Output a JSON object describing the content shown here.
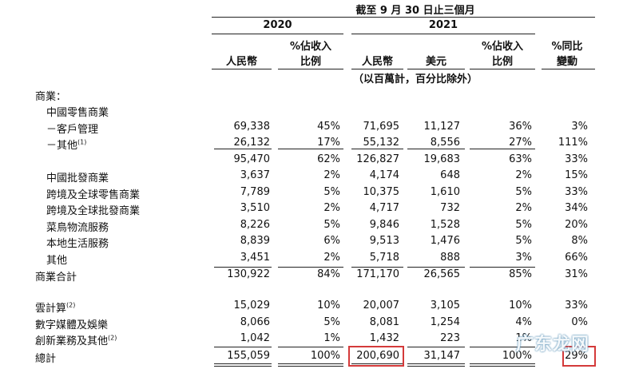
{
  "header": {
    "period": "截至 9 月 30 日止三個月",
    "year_2020": "2020",
    "year_2021": "2021",
    "col_rmb_2020": "人民幣",
    "col_pct_2020_l1": "%佔收入",
    "col_pct_2020_l2": "比例",
    "col_rmb_2021": "人民幣",
    "col_usd_2021": "美元",
    "col_pct_2021_l1": "%佔收入",
    "col_pct_2021_l2": "比例",
    "col_yoy_l1": "%同比",
    "col_yoy_l2": "變動",
    "unit_note": "（以百萬計，百分比除外）"
  },
  "section_label": "商業：",
  "sub_label": "中國零售商業",
  "rows": [
    {
      "label": "－客戶管理",
      "sup": "",
      "rmb2020": "69,338",
      "pct2020": "45%",
      "rmb2021": "71,695",
      "usd2021": "11,127",
      "pct2021": "36%",
      "yoy": "3%"
    },
    {
      "label": "－其他",
      "sup": "(1)",
      "rmb2020": "26,132",
      "pct2020": "17%",
      "rmb2021": "55,132",
      "usd2021": "8,556",
      "pct2021": "27%",
      "yoy": "111%"
    },
    {
      "label": "",
      "sup": "",
      "rmb2020": "95,470",
      "pct2020": "62%",
      "rmb2021": "126,827",
      "usd2021": "19,683",
      "pct2021": "63%",
      "yoy": "33%"
    },
    {
      "label": "中國批發商業",
      "sup": "",
      "rmb2020": "3,637",
      "pct2020": "2%",
      "rmb2021": "4,174",
      "usd2021": "648",
      "pct2021": "2%",
      "yoy": "15%"
    },
    {
      "label": "跨境及全球零售商業",
      "sup": "",
      "rmb2020": "7,789",
      "pct2020": "5%",
      "rmb2021": "10,375",
      "usd2021": "1,610",
      "pct2021": "5%",
      "yoy": "33%"
    },
    {
      "label": "跨境及全球批發商業",
      "sup": "",
      "rmb2020": "3,510",
      "pct2020": "2%",
      "rmb2021": "4,717",
      "usd2021": "732",
      "pct2021": "2%",
      "yoy": "34%"
    },
    {
      "label": "菜鳥物流服務",
      "sup": "",
      "rmb2020": "8,226",
      "pct2020": "5%",
      "rmb2021": "9,846",
      "usd2021": "1,528",
      "pct2021": "5%",
      "yoy": "20%"
    },
    {
      "label": "本地生活服務",
      "sup": "",
      "rmb2020": "8,839",
      "pct2020": "6%",
      "rmb2021": "9,513",
      "usd2021": "1,476",
      "pct2021": "5%",
      "yoy": "8%"
    },
    {
      "label": "其他",
      "sup": "",
      "rmb2020": "3,451",
      "pct2020": "2%",
      "rmb2021": "5,718",
      "usd2021": "888",
      "pct2021": "3%",
      "yoy": "66%"
    },
    {
      "label": "商業合計",
      "sup": "",
      "rmb2020": "130,922",
      "pct2020": "84%",
      "rmb2021": "171,170",
      "usd2021": "26,565",
      "pct2021": "85%",
      "yoy": "31%"
    },
    {
      "label": "雲計算",
      "sup": "(2)",
      "rmb2020": "15,029",
      "pct2020": "10%",
      "rmb2021": "20,007",
      "usd2021": "3,105",
      "pct2021": "10%",
      "yoy": "33%"
    },
    {
      "label": "數字媒體及娛樂",
      "sup": "",
      "rmb2020": "8,066",
      "pct2020": "5%",
      "rmb2021": "8,081",
      "usd2021": "1,254",
      "pct2021": "4%",
      "yoy": "0%"
    },
    {
      "label": "創新業務及其他",
      "sup": "(2)",
      "rmb2020": "1,042",
      "pct2020": "1%",
      "rmb2021": "1,432",
      "usd2021": "223",
      "pct2021": "1%",
      "yoy": ""
    },
    {
      "label": "總計",
      "sup": "",
      "rmb2020": "155,059",
      "pct2020": "100%",
      "rmb2021": "200,690",
      "usd2021": "31,147",
      "pct2021": "100%",
      "yoy": "29%"
    }
  ],
  "watermark": "广东龙网"
}
